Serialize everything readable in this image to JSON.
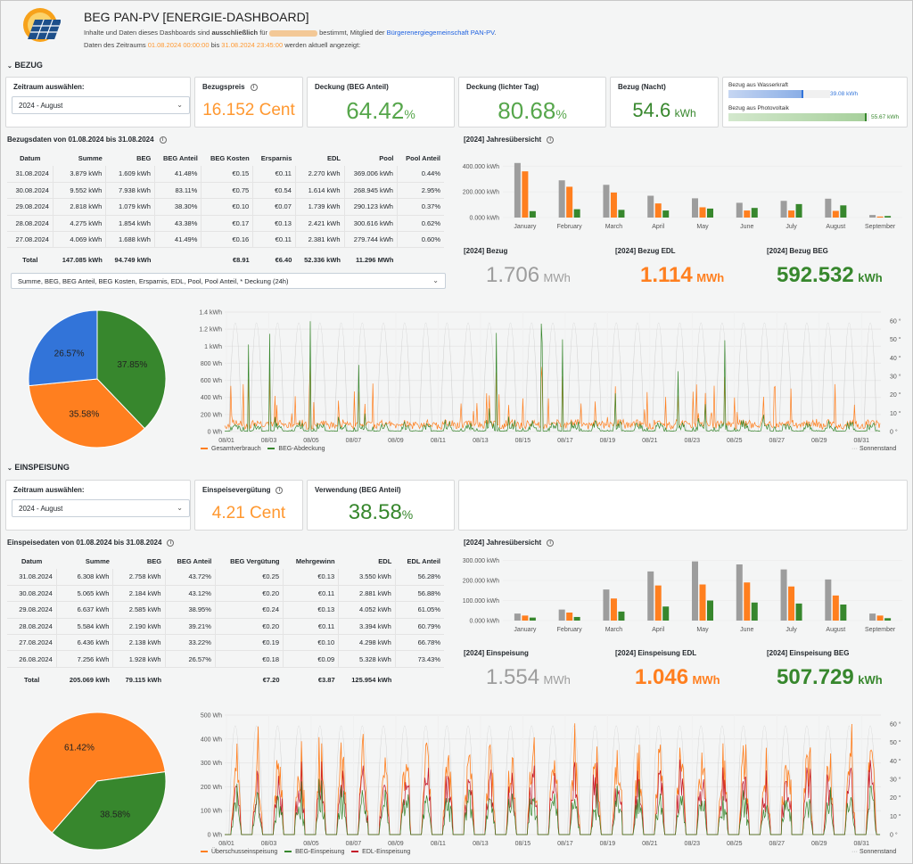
{
  "header": {
    "title": "BEG PAN-PV [ENERGIE-DASHBOARD]",
    "line1_pre": "Inhalte und Daten dieses Dashboards sind ",
    "line1_bold": "ausschließlich",
    "line1_mid": " für ",
    "line1_post": " bestimmt, Mitglied der ",
    "line1_link": "Bürgerenergiegemeinschaft PAN-PV",
    "line1_end": ".",
    "line2_pre": "Daten des Zeitraums ",
    "line2_from": "01.08.2024 00:00:00",
    "line2_mid": " bis ",
    "line2_to": "31.08.2024 23:45:00",
    "line2_post": " werden aktuell angezeigt:"
  },
  "colors": {
    "orange": "#ff7f1f",
    "green": "#37872d",
    "green_light": "#56a64b",
    "grey": "#9d9d9d",
    "blue": "#3274d9",
    "red": "#c4162a",
    "link": "#1f62e0",
    "date": "#ff9830"
  },
  "bezug": {
    "section": "BEZUG",
    "zeitraum_title": "Zeitraum auswählen:",
    "zeitraum_value": "2024 - August",
    "preis_title": "Bezugspreis",
    "preis_value": "16.152 Cent",
    "deckung_title": "Deckung (BEG Anteil)",
    "deckung_value": "64.42",
    "deckung_unit": "%",
    "licht_title": "Deckung (lichter Tag)",
    "licht_value": "80.68",
    "licht_unit": "%",
    "nacht_title": "Bezug (Nacht)",
    "nacht_value": "54.6",
    "nacht_unit": "kWh",
    "wasser_label": "Bezug aus Wasserkraft",
    "wasser_value": "39.08 kWh",
    "wasser_fraction": 0.74,
    "pv_label": "Bezug aus Photovoltaik",
    "pv_value": "55.67 kWh",
    "pv_fraction": 0.98,
    "table_title": "Bezugsdaten von 01.08.2024 bis 31.08.2024",
    "columns": [
      "Datum",
      "Summe",
      "BEG",
      "BEG Anteil",
      "BEG Kosten",
      "Ersparnis",
      "EDL",
      "Pool",
      "Pool Anteil"
    ],
    "rows": [
      [
        "31.08.2024",
        "3.879 kWh",
        "1.609 kWh",
        "41.48%",
        "€0.15",
        "€0.11",
        "2.270 kWh",
        "369.006 kWh",
        "0.44%"
      ],
      [
        "30.08.2024",
        "9.552 kWh",
        "7.938 kWh",
        "83.11%",
        "€0.75",
        "€0.54",
        "1.614 kWh",
        "268.945 kWh",
        "2.95%"
      ],
      [
        "29.08.2024",
        "2.818 kWh",
        "1.079 kWh",
        "38.30%",
        "€0.10",
        "€0.07",
        "1.739 kWh",
        "290.123 kWh",
        "0.37%"
      ],
      [
        "28.08.2024",
        "4.275 kWh",
        "1.854 kWh",
        "43.38%",
        "€0.17",
        "€0.13",
        "2.421 kWh",
        "300.616 kWh",
        "0.62%"
      ],
      [
        "27.08.2024",
        "4.069 kWh",
        "1.688 kWh",
        "41.49%",
        "€0.16",
        "€0.11",
        "2.381 kWh",
        "279.744 kWh",
        "0.60%"
      ]
    ],
    "total": [
      "Total",
      "147.085 kWh",
      "94.749 kWh",
      "",
      "€8.91",
      "€6.40",
      "52.336 kWh",
      "11.296 MWh",
      ""
    ],
    "column_select": "Summe, BEG, BEG Anteil, BEG Kosten, Ersparnis, EDL, Pool, Pool Anteil, * Deckung (24h)",
    "jahres_title": "[2024] Jahresübersicht",
    "sum_title": "[2024] Bezug",
    "sum_value": "1.706",
    "sum_unit": "MWh",
    "edl_title": "[2024] Bezug EDL",
    "edl_value": "1.114",
    "edl_unit": "MWh",
    "beg_title": "[2024] Bezug BEG",
    "beg_value": "592.532",
    "beg_unit": "kWh",
    "pie": [
      {
        "label": "37.85%",
        "value": 37.85,
        "color": "#37872d"
      },
      {
        "label": "35.58%",
        "value": 35.58,
        "color": "#ff7f1f"
      },
      {
        "label": "26.57%",
        "value": 26.57,
        "color": "#3274d9"
      }
    ],
    "ts_yticks": [
      "0 Wh",
      "200 Wh",
      "400 Wh",
      "600 Wh",
      "800 Wh",
      "1 kWh",
      "1.2 kWh",
      "1.4 kWh"
    ],
    "ts_y2ticks": [
      "0 °",
      "10 °",
      "20 °",
      "30 °",
      "40 °",
      "50 °",
      "60 °"
    ],
    "ts_legend": [
      "Gesamtverbrauch",
      "BEG-Abdeckung"
    ],
    "ts_legend_right": "Sonnenstand"
  },
  "einspeisung": {
    "section": "EINSPEISUNG",
    "zeitraum_title": "Zeitraum auswählen:",
    "zeitraum_value": "2024 - August",
    "verg_title": "Einspeisevergütung",
    "verg_value": "4.21 Cent",
    "verw_title": "Verwendung (BEG Anteil)",
    "verw_value": "38.58",
    "verw_unit": "%",
    "table_title": "Einspeisedaten von 01.08.2024 bis 31.08.2024",
    "columns": [
      "Datum",
      "Summe",
      "BEG",
      "BEG Anteil",
      "BEG Vergütung",
      "Mehrgewinn",
      "EDL",
      "EDL Anteil"
    ],
    "rows": [
      [
        "31.08.2024",
        "6.308 kWh",
        "2.758 kWh",
        "43.72%",
        "€0.25",
        "€0.13",
        "3.550 kWh",
        "56.28%"
      ],
      [
        "30.08.2024",
        "5.065 kWh",
        "2.184 kWh",
        "43.12%",
        "€0.20",
        "€0.11",
        "2.881 kWh",
        "56.88%"
      ],
      [
        "29.08.2024",
        "6.637 kWh",
        "2.585 kWh",
        "38.95%",
        "€0.24",
        "€0.13",
        "4.052 kWh",
        "61.05%"
      ],
      [
        "28.08.2024",
        "5.584 kWh",
        "2.190 kWh",
        "39.21%",
        "€0.20",
        "€0.11",
        "3.394 kWh",
        "60.79%"
      ],
      [
        "27.08.2024",
        "6.436 kWh",
        "2.138 kWh",
        "33.22%",
        "€0.19",
        "€0.10",
        "4.298 kWh",
        "66.78%"
      ],
      [
        "26.08.2024",
        "7.256 kWh",
        "1.928 kWh",
        "26.57%",
        "€0.18",
        "€0.09",
        "5.328 kWh",
        "73.43%"
      ]
    ],
    "total": [
      "Total",
      "205.069 kWh",
      "79.115 kWh",
      "",
      "€7.20",
      "€3.87",
      "125.954 kWh",
      ""
    ],
    "jahres_title": "[2024] Jahresübersicht",
    "sum_title": "[2024] Einspeisung",
    "sum_value": "1.554",
    "sum_unit": "MWh",
    "edl_title": "[2024] Einspeisung EDL",
    "edl_value": "1.046",
    "edl_unit": "MWh",
    "beg_title": "[2024] Einspeisung BEG",
    "beg_value": "507.729",
    "beg_unit": "kWh",
    "pie": [
      {
        "label": "61.42%",
        "value": 61.42,
        "color": "#ff7f1f"
      },
      {
        "label": "38.58%",
        "value": 38.58,
        "color": "#37872d"
      }
    ],
    "ts_yticks": [
      "0 Wh",
      "100 Wh",
      "200 Wh",
      "300 Wh",
      "400 Wh",
      "500 Wh"
    ],
    "ts_y2ticks": [
      "0 °",
      "10 °",
      "20 °",
      "30 °",
      "40 °",
      "50 °",
      "60 °"
    ],
    "ts_legend": [
      "Überschusseinspeisung",
      "BEG-Einspeisung",
      "EDL-Einspeisung"
    ],
    "ts_legend_right": "Sonnenstand"
  },
  "x_dates": [
    "08/01",
    "08/03",
    "08/05",
    "08/07",
    "08/09",
    "08/11",
    "08/13",
    "08/15",
    "08/17",
    "08/19",
    "08/21",
    "08/23",
    "08/25",
    "08/27",
    "08/29",
    "08/31"
  ],
  "chart_data": [
    {
      "type": "bar",
      "title": "[2024] Jahresübersicht",
      "categories": [
        "January",
        "February",
        "March",
        "April",
        "May",
        "June",
        "July",
        "August",
        "September"
      ],
      "yticks": [
        "0.000 kWh",
        "200.000 kWh",
        "400.000 kWh"
      ],
      "ylim": [
        0,
        500000
      ],
      "series": [
        {
          "name": "Summe",
          "color": "#9d9d9d",
          "values": [
            425000,
            290000,
            255000,
            170000,
            150000,
            115000,
            130000,
            147000,
            20000
          ]
        },
        {
          "name": "EDL",
          "color": "#ff7f1f",
          "values": [
            360000,
            240000,
            195000,
            110000,
            80000,
            55000,
            55000,
            52000,
            8000
          ]
        },
        {
          "name": "BEG",
          "color": "#37872d",
          "values": [
            50000,
            65000,
            60000,
            55000,
            70000,
            75000,
            105000,
            95000,
            12000
          ]
        }
      ]
    },
    {
      "type": "bar",
      "title": "[2024] Jahresübersicht",
      "categories": [
        "January",
        "February",
        "March",
        "April",
        "May",
        "June",
        "July",
        "August",
        "September"
      ],
      "yticks": [
        "0.000 kWh",
        "100.000 kWh",
        "200.000 kWh",
        "300.000 kWh"
      ],
      "ylim": [
        0,
        320000
      ],
      "series": [
        {
          "name": "Summe",
          "color": "#9d9d9d",
          "values": [
            35000,
            55000,
            155000,
            245000,
            295000,
            280000,
            255000,
            205000,
            35000
          ]
        },
        {
          "name": "EDL",
          "color": "#ff7f1f",
          "values": [
            25000,
            40000,
            110000,
            175000,
            180000,
            190000,
            170000,
            125000,
            25000
          ]
        },
        {
          "name": "BEG",
          "color": "#37872d",
          "values": [
            15000,
            18000,
            45000,
            70000,
            100000,
            90000,
            85000,
            80000,
            12000
          ]
        }
      ]
    }
  ]
}
